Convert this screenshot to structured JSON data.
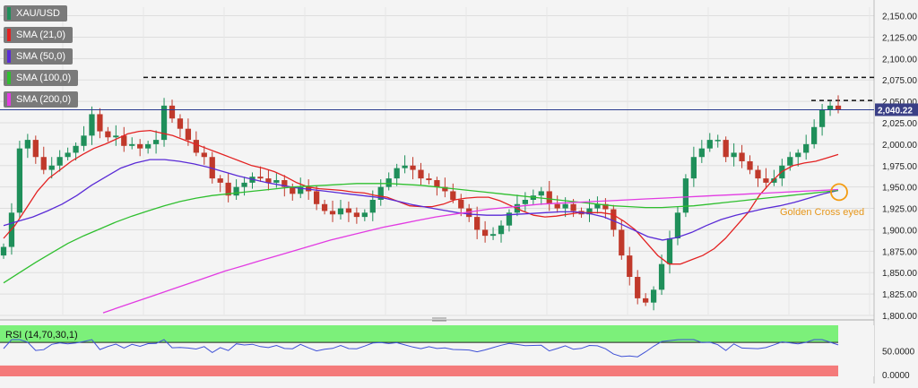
{
  "chart_data": [
    {
      "type": "candlestick",
      "symbol": "XAU/USD",
      "legend": [
        {
          "label": "XAU/USD",
          "color": "#1f8f5a"
        },
        {
          "label": "SMA (21,0)",
          "color": "#e32222"
        },
        {
          "label": "SMA (50,0)",
          "color": "#5a2bd6"
        },
        {
          "label": "SMA (100,0)",
          "color": "#2fbf2f"
        },
        {
          "label": "SMA (200,0)",
          "color": "#e23be2"
        }
      ],
      "y_ticks": [
        "2,150.00",
        "2,125.00",
        "2,100.00",
        "2,075.00",
        "2,050.00",
        "2,025.00",
        "2,000.00",
        "1,975.00",
        "1,950.00",
        "1,925.00",
        "1,900.00",
        "1,875.00",
        "1,850.00",
        "1,825.00",
        "1,800.00"
      ],
      "ylim": [
        1800,
        2160
      ],
      "last_price_label": "2,040.22",
      "annotation": "Golden Cross eyed",
      "closes": [
        1880,
        1920,
        1995,
        2005,
        1985,
        1970,
        1975,
        1985,
        1990,
        1998,
        2010,
        2035,
        2015,
        2008,
        2010,
        1998,
        2000,
        1995,
        2000,
        2005,
        2045,
        2030,
        2018,
        2005,
        1990,
        1985,
        1960,
        1955,
        1940,
        1950,
        1955,
        1962,
        1960,
        1955,
        1958,
        1950,
        1942,
        1950,
        1945,
        1930,
        1922,
        1918,
        1925,
        1920,
        1915,
        1920,
        1935,
        1950,
        1960,
        1972,
        1975,
        1970,
        1960,
        1958,
        1950,
        1945,
        1935,
        1925,
        1915,
        1900,
        1893,
        1895,
        1905,
        1920,
        1930,
        1935,
        1940,
        1945,
        1930,
        1925,
        1930,
        1922,
        1918,
        1925,
        1930,
        1924,
        1900,
        1870,
        1845,
        1820,
        1815,
        1830,
        1860,
        1890,
        1920,
        1960,
        1985,
        1995,
        2005,
        2005,
        1985,
        1990,
        1980,
        1970,
        1960,
        1955,
        1960,
        1975,
        1985,
        1990,
        2000,
        2020,
        2040,
        2045,
        2040
      ],
      "sma21": [
        1890,
        1905,
        1925,
        1945,
        1960,
        1970,
        1980,
        1988,
        1995,
        2000,
        2006,
        2012,
        2015,
        2016,
        2013,
        2010,
        2005,
        2000,
        1995,
        1990,
        1985,
        1980,
        1975,
        1972,
        1968,
        1962,
        1955,
        1950,
        1948,
        1947,
        1946,
        1944,
        1943,
        1940,
        1938,
        1933,
        1928,
        1927,
        1927,
        1930,
        1935,
        1937,
        1938,
        1938,
        1934,
        1928,
        1922,
        1917,
        1915,
        1916,
        1918,
        1920,
        1920,
        1920,
        1918,
        1910,
        1900,
        1885,
        1870,
        1860,
        1860,
        1865,
        1870,
        1878,
        1890,
        1905,
        1920,
        1940,
        1955,
        1968,
        1975,
        1978,
        1980,
        1984,
        1988
      ],
      "sma50": [
        1905,
        1910,
        1915,
        1922,
        1930,
        1940,
        1952,
        1962,
        1972,
        1978,
        1982,
        1982,
        1980,
        1977,
        1973,
        1968,
        1963,
        1959,
        1955,
        1952,
        1949,
        1947,
        1945,
        1943,
        1941,
        1939,
        1937,
        1933,
        1929,
        1926,
        1923,
        1920,
        1918,
        1917,
        1917,
        1918,
        1919,
        1920,
        1921,
        1921,
        1919,
        1915,
        1908,
        1900,
        1892,
        1888,
        1891,
        1897,
        1905,
        1912,
        1917,
        1921,
        1925,
        1928,
        1932,
        1937,
        1942,
        1946
      ],
      "sma100": [
        1838,
        1850,
        1862,
        1873,
        1884,
        1893,
        1901,
        1909,
        1916,
        1922,
        1928,
        1933,
        1937,
        1940,
        1942,
        1944,
        1946,
        1948,
        1950,
        1951,
        1952,
        1953,
        1954,
        1954,
        1954,
        1953,
        1952,
        1950,
        1948,
        1946,
        1944,
        1942,
        1940,
        1938,
        1936,
        1934,
        1932,
        1930,
        1928,
        1927,
        1926,
        1926,
        1927,
        1928,
        1930,
        1932,
        1934,
        1936,
        1938,
        1940,
        1942,
        1944,
        1946
      ],
      "sma200": [
        1803,
        1810,
        1817,
        1824,
        1831,
        1838,
        1845,
        1852,
        1858,
        1864,
        1870,
        1876,
        1882,
        1888,
        1893,
        1898,
        1903,
        1907,
        1911,
        1915,
        1918,
        1921,
        1924,
        1926,
        1928,
        1930,
        1931,
        1932,
        1933,
        1934,
        1935,
        1936,
        1937,
        1938,
        1939,
        1940,
        1941,
        1942,
        1943,
        1944,
        1945,
        1946,
        1947
      ],
      "rsi_label": "RSI (14,70,30,1)",
      "rsi_ticks": [
        "50.0000",
        "0.0000"
      ]
    }
  ]
}
